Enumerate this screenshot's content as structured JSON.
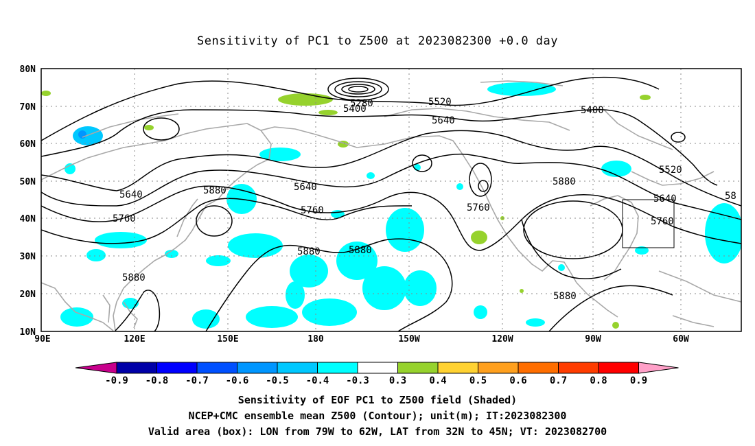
{
  "title": "Sensitivity of PC1 to Z500 at 2023082300 +0.0 day",
  "lat_labels": [
    "80N",
    "70N",
    "60N",
    "50N",
    "40N",
    "30N",
    "20N",
    "10N"
  ],
  "lon_labels": [
    "90E",
    "120E",
    "150E",
    "180",
    "150W",
    "120W",
    "90W",
    "60W"
  ],
  "contour_labels": [
    "5280",
    "5400",
    "5520",
    "5640",
    "5400",
    "5640",
    "5520",
    "5880",
    "5880",
    "5640",
    "5640",
    "5760",
    "5760",
    "5880",
    "5880",
    "5760",
    "5640",
    "58",
    "5760",
    "5880",
    "5880"
  ],
  "colorbar": {
    "labels": [
      "-0.9",
      "-0.8",
      "-0.7",
      "-0.6",
      "-0.5",
      "-0.4",
      "-0.3",
      "0.3",
      "0.4",
      "0.5",
      "0.6",
      "0.7",
      "0.8",
      "0.9"
    ],
    "colors": [
      "#0000a8",
      "#0000ff",
      "#0050ff",
      "#0096ff",
      "#00c8ff",
      "#00ffff",
      "#ffffff",
      "#96d22d",
      "#ffd232",
      "#ffa01e",
      "#ff6e00",
      "#ff3c00",
      "#ff0000"
    ],
    "left_arrow": "#c8008c",
    "right_arrow": "#ffa0c8"
  },
  "captions": [
    "Sensitivity of EOF PC1 to Z500 field (Shaded)",
    "NCEP+CMC ensemble mean Z500 (Contour); unit(m); IT:2023082300",
    "Valid area (box): LON from 79W to 62W, LAT from 32N to 45N; VT: 2023082700"
  ],
  "valid_box": {
    "lon": [
      -79,
      -62
    ],
    "lat": [
      32,
      45
    ]
  }
}
